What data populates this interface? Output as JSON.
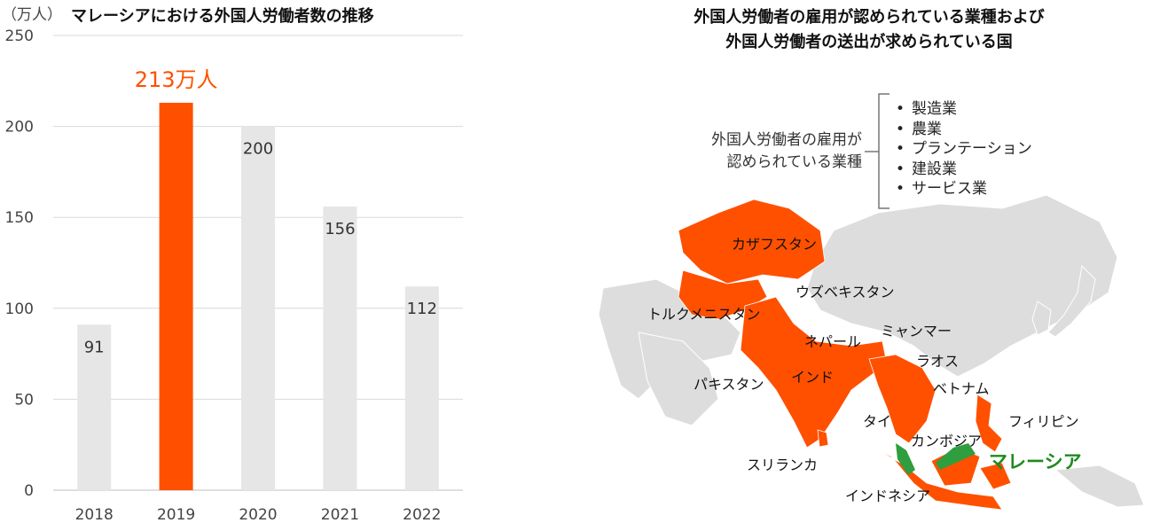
{
  "chart_data": {
    "type": "bar",
    "title": "マレーシアにおける外国人労働者数の推移",
    "ylabel": "（万人）",
    "categories": [
      "2018",
      "2019",
      "2020",
      "2021",
      "2022"
    ],
    "values": [
      91,
      213,
      200,
      156,
      112
    ],
    "ylim": [
      0,
      250
    ],
    "yticks": [
      "0",
      "50",
      "100",
      "150",
      "200",
      "250"
    ],
    "data_labels": [
      "91",
      "213万人",
      "200",
      "156",
      "112"
    ],
    "highlight_index": 1,
    "bar_color": "#e6e6e6",
    "highlight_color": "#ff5000",
    "grid": true
  },
  "panel": {
    "title_line1": "外国人労働者の雇用が認められている業種および",
    "title_line2": "外国人労働者の送出が求められている国",
    "sectors_caption_line1": "外国人労働者の雇用が",
    "sectors_caption_line2": "認められている業種",
    "sectors": [
      "製造業",
      "農業",
      "プランテーション",
      "建設業",
      "サービス業"
    ]
  },
  "map": {
    "sending_color": "#ff5000",
    "host_color": "#2e9e3e",
    "land_color": "#dddddd",
    "countries": [
      "カザフスタン",
      "ウズベキスタン",
      "トルクメニスタン",
      "ネパール",
      "ミャンマー",
      "ラオス",
      "パキスタン",
      "インド",
      "ベトナム",
      "タイ",
      "フィリピン",
      "カンボジア",
      "スリランカ",
      "インドネシア"
    ],
    "host": "マレーシア"
  }
}
